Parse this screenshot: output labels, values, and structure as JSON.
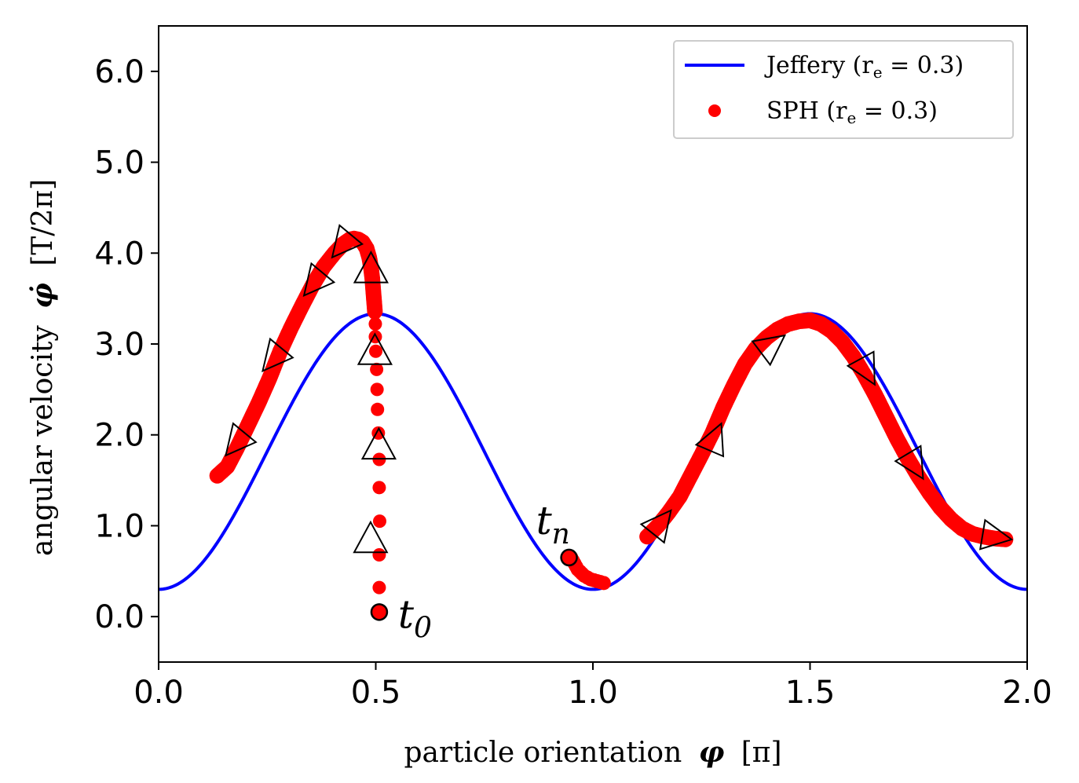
{
  "chart_data": {
    "type": "line",
    "xlabel_text": "particle orientation",
    "xlabel_symbol": "φ",
    "xlabel_unit": "[π]",
    "ylabel_text": "angular velocity",
    "ylabel_symbol": "φ̇",
    "ylabel_unit": "[T/2π]",
    "xlim": [
      0.0,
      2.0
    ],
    "ylim": [
      -0.5,
      6.5
    ],
    "xticks": [
      0.0,
      0.5,
      1.0,
      1.5,
      2.0
    ],
    "yticks": [
      0.0,
      1.0,
      2.0,
      3.0,
      4.0,
      5.0,
      6.0
    ],
    "xtick_labels": [
      "0.0",
      "0.5",
      "1.0",
      "1.5",
      "2.0"
    ],
    "ytick_labels": [
      "0.0",
      "1.0",
      "2.0",
      "3.0",
      "4.0",
      "5.0",
      "6.0"
    ],
    "legend": {
      "position": "top-right",
      "jeffery_label": "Jeffery (r",
      "sph_label": "SPH (r",
      "subscript": "e",
      "value_suffix": " = 0.3)"
    },
    "series": [
      {
        "name": "Jeffery (re = 0.3)",
        "kind": "curve",
        "color": "#0000ff",
        "formula": "phidot = (a + b*sin^2(pi*phi)) with min 0.3 at phi=0,1,2 and max 3.333 at phi=0.5,1.5",
        "min": 0.3,
        "max": 3.333
      },
      {
        "name": "SPH (re = 0.3)",
        "kind": "scatter",
        "color": "#ff0000",
        "vertical_drop": [
          [
            0.508,
            0.05
          ],
          [
            0.508,
            0.32
          ],
          [
            0.508,
            0.68
          ],
          [
            0.509,
            1.05
          ],
          [
            0.508,
            1.42
          ],
          [
            0.508,
            1.73
          ],
          [
            0.506,
            2.02
          ],
          [
            0.504,
            2.28
          ],
          [
            0.503,
            2.5
          ],
          [
            0.502,
            2.72
          ],
          [
            0.5,
            2.92
          ],
          [
            0.499,
            3.08
          ],
          [
            0.499,
            3.22
          ],
          [
            0.498,
            3.34
          ]
        ],
        "arc_first": [
          [
            0.498,
            3.36
          ],
          [
            0.496,
            3.48
          ],
          [
            0.494,
            3.6
          ],
          [
            0.492,
            3.72
          ],
          [
            0.489,
            3.84
          ],
          [
            0.485,
            3.95
          ],
          [
            0.479,
            4.05
          ],
          [
            0.47,
            4.12
          ],
          [
            0.46,
            4.15
          ],
          [
            0.45,
            4.16
          ],
          [
            0.44,
            4.15
          ],
          [
            0.425,
            4.1
          ],
          [
            0.405,
            4.0
          ],
          [
            0.38,
            3.85
          ],
          [
            0.355,
            3.65
          ],
          [
            0.33,
            3.42
          ],
          [
            0.305,
            3.18
          ],
          [
            0.28,
            2.92
          ],
          [
            0.255,
            2.62
          ],
          [
            0.23,
            2.35
          ],
          [
            0.205,
            2.1
          ],
          [
            0.18,
            1.85
          ],
          [
            0.158,
            1.65
          ],
          [
            0.135,
            1.55
          ]
        ],
        "tail_first": [
          [
            0.95,
            0.65
          ],
          [
            0.965,
            0.52
          ],
          [
            0.98,
            0.45
          ],
          [
            0.995,
            0.41
          ],
          [
            1.01,
            0.39
          ],
          [
            1.025,
            0.37
          ]
        ],
        "arc_second": [
          [
            1.125,
            0.88
          ],
          [
            1.15,
            1.0
          ],
          [
            1.175,
            1.15
          ],
          [
            1.2,
            1.32
          ],
          [
            1.225,
            1.55
          ],
          [
            1.25,
            1.78
          ],
          [
            1.275,
            2.02
          ],
          [
            1.3,
            2.3
          ],
          [
            1.325,
            2.55
          ],
          [
            1.35,
            2.78
          ],
          [
            1.375,
            2.95
          ],
          [
            1.4,
            3.07
          ],
          [
            1.425,
            3.16
          ],
          [
            1.45,
            3.22
          ],
          [
            1.475,
            3.25
          ],
          [
            1.5,
            3.26
          ],
          [
            1.525,
            3.22
          ],
          [
            1.55,
            3.14
          ],
          [
            1.575,
            3.02
          ],
          [
            1.6,
            2.86
          ],
          [
            1.625,
            2.66
          ],
          [
            1.65,
            2.44
          ],
          [
            1.675,
            2.2
          ],
          [
            1.7,
            1.96
          ],
          [
            1.725,
            1.74
          ],
          [
            1.75,
            1.54
          ],
          [
            1.775,
            1.36
          ],
          [
            1.8,
            1.2
          ],
          [
            1.825,
            1.07
          ],
          [
            1.85,
            0.97
          ],
          [
            1.875,
            0.91
          ],
          [
            1.9,
            0.88
          ],
          [
            1.925,
            0.86
          ],
          [
            1.95,
            0.85
          ]
        ]
      }
    ],
    "markers_down": [
      [
        0.18,
        1.92
      ],
      [
        0.265,
        2.85
      ],
      [
        0.36,
        3.68
      ],
      [
        0.425,
        4.1
      ]
    ],
    "markers_right_of_peak": [
      [
        0.43,
        4.12
      ]
    ],
    "markers_up": [
      [
        0.488,
        0.85
      ],
      [
        0.507,
        1.88
      ],
      [
        0.498,
        2.92
      ],
      [
        0.489,
        3.82
      ]
    ],
    "markers_lower_arc": [
      [
        1.155,
        1.02
      ],
      [
        1.28,
        1.95
      ],
      [
        1.41,
        2.98
      ],
      [
        1.63,
        2.72
      ],
      [
        1.74,
        1.68
      ],
      [
        1.925,
        0.88
      ]
    ],
    "annotations": [
      {
        "id": "t0",
        "letter": "t",
        "sub": "0",
        "x": 0.508,
        "y": 0.05
      },
      {
        "id": "tn",
        "letter": "t",
        "sub": "n",
        "x": 0.945,
        "y": 0.65
      }
    ]
  }
}
